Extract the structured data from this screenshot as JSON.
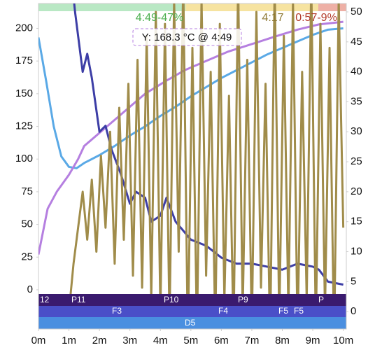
{
  "chart_data": {
    "type": "line",
    "xlim": [
      0,
      10.1
    ],
    "ylim": [
      -30,
      219
    ],
    "y2lim": [
      -2.9,
      51.4
    ],
    "xticks": [
      {
        "value": 0,
        "label": "0m"
      },
      {
        "value": 1,
        "label": "1m"
      },
      {
        "value": 2,
        "label": "2m"
      },
      {
        "value": 3,
        "label": "3m"
      },
      {
        "value": 4,
        "label": "4m"
      },
      {
        "value": 5,
        "label": "5m"
      },
      {
        "value": 6,
        "label": "6m"
      },
      {
        "value": 7,
        "label": "7m"
      },
      {
        "value": 8,
        "label": "8m"
      },
      {
        "value": 9,
        "label": "9m"
      },
      {
        "value": 10,
        "label": "10m"
      }
    ],
    "yticks": [
      0,
      25,
      50,
      75,
      100,
      125,
      150,
      175,
      200
    ],
    "y2ticks": [
      0,
      5,
      10,
      15,
      20,
      25,
      30,
      35,
      40,
      45,
      50
    ],
    "annotations": [
      "4:49-47%",
      "4:17",
      "0:57-9%"
    ],
    "tooltip": "Y: 168.3 °C @ 4:49",
    "phase_labels": [
      "12",
      "P11",
      "P10",
      "P9",
      "P",
      "F3",
      "F4",
      "F5",
      "F5",
      "D5"
    ],
    "series": [
      {
        "color": "#5aa9e6",
        "axis": "y",
        "x": [
          0,
          0.25,
          0.5,
          0.75,
          1,
          1.25,
          1.5,
          2,
          2.5,
          3,
          3.5,
          4,
          4.5,
          5,
          5.5,
          6,
          6.5,
          7,
          7.5,
          8,
          8.5,
          9,
          9.5,
          10
        ],
        "values": [
          193,
          160,
          125,
          102,
          94,
          93,
          97,
          103,
          110,
          118,
          125,
          133,
          140,
          148,
          155,
          162,
          168,
          174,
          180,
          185,
          190,
          195,
          199,
          200
        ]
      },
      {
        "color": "#b57fe0",
        "axis": "y",
        "x": [
          0,
          0.3,
          0.6,
          1,
          1.3,
          1.5,
          2,
          2.5,
          3,
          3.5,
          4.2,
          4.8,
          5.5,
          6.2,
          7,
          7.8,
          8.5,
          9.2,
          10
        ],
        "values": [
          27,
          62,
          75,
          88,
          100,
          110,
          120,
          130,
          140,
          150,
          160,
          168,
          175,
          182,
          188,
          194,
          199,
          203,
          205
        ]
      },
      {
        "color": "#3d3ea6",
        "axis": "y2",
        "x": [
          1,
          1.2,
          1.45,
          1.6,
          1.75,
          2,
          2.2,
          2.4,
          2.7,
          3,
          3.2,
          3.5,
          3.7,
          4,
          4.2,
          4.5,
          5,
          5.5,
          6,
          6.5,
          7,
          7.5,
          8,
          8.5,
          9,
          9.2,
          9.5,
          10
        ],
        "values": [
          60,
          50,
          40,
          43,
          39,
          30,
          31,
          27,
          23,
          18,
          20,
          19,
          15,
          16,
          19,
          15,
          12,
          11,
          9,
          8,
          8,
          7.5,
          7,
          8,
          7.5,
          7,
          5,
          4.5
        ]
      },
      {
        "color": "#a08c4a",
        "axis": "y2",
        "x": [
          1.0,
          1.15,
          1.3,
          1.45,
          1.6,
          1.75,
          1.9,
          2.05,
          2.2,
          2.35,
          2.5,
          2.65,
          2.8,
          2.95,
          3.1,
          3.25,
          3.4,
          3.55,
          3.7,
          3.85,
          4.0,
          4.15,
          4.3,
          4.45,
          4.6,
          4.75,
          4.9,
          5.05,
          5.2,
          5.35,
          5.5,
          5.65,
          5.8,
          5.95,
          6.1,
          6.25,
          6.4,
          6.55,
          6.7,
          6.85,
          7.0,
          7.15,
          7.3,
          7.45,
          7.6,
          7.75,
          7.9,
          8.05,
          8.2,
          8.35,
          8.5,
          8.65,
          8.8,
          8.95,
          9.1,
          9.25,
          9.4,
          9.55,
          9.7,
          9.85,
          10.0
        ],
        "values": [
          0,
          8,
          14,
          20,
          12,
          22,
          10,
          26,
          14,
          30,
          8,
          34,
          12,
          38,
          6,
          42,
          4,
          46,
          2,
          50,
          0,
          48,
          -2,
          52,
          10,
          55,
          -5,
          44,
          -4,
          52,
          6,
          40,
          -3,
          48,
          2,
          36,
          -4,
          55,
          0,
          42,
          -3,
          50,
          4,
          38,
          -5,
          55,
          -2,
          46,
          0,
          52,
          -4,
          40,
          2,
          55,
          -3,
          48,
          0,
          44,
          -5,
          52,
          14
        ]
      }
    ]
  }
}
